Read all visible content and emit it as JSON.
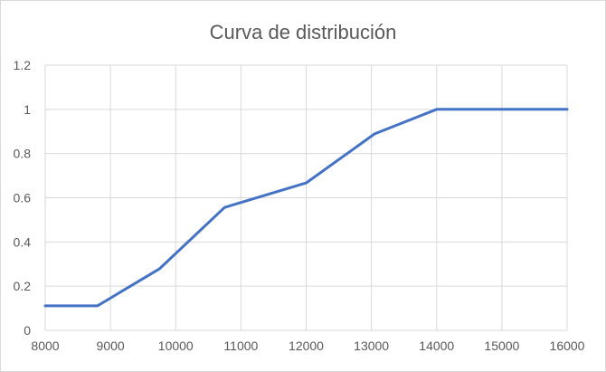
{
  "chart_data": {
    "type": "line",
    "title": "Curva de distribución",
    "xlabel": "",
    "ylabel": "",
    "xlim": [
      8000,
      16000
    ],
    "ylim": [
      0,
      1.2
    ],
    "x_ticks": [
      "8000",
      "9000",
      "10000",
      "11000",
      "12000",
      "13000",
      "14000",
      "15000",
      "16000"
    ],
    "y_ticks": [
      "0",
      "0.2",
      "0.4",
      "0.6",
      "0.8",
      "1",
      "1.2"
    ],
    "grid": true,
    "legend": "none",
    "series": [
      {
        "color": "#4472c4",
        "x": [
          8000,
          8800,
          9750,
          10750,
          12000,
          13050,
          14000,
          16000
        ],
        "y": [
          0.111,
          0.111,
          0.278,
          0.556,
          0.667,
          0.889,
          1.0,
          1.0
        ]
      }
    ]
  }
}
